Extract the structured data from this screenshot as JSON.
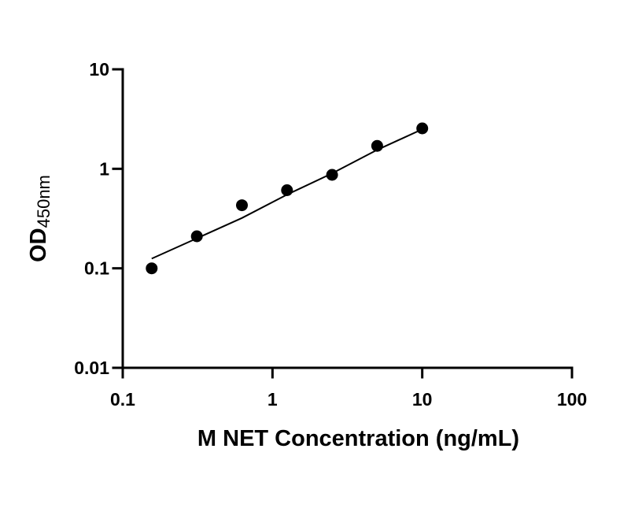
{
  "chart_data": {
    "type": "scatter",
    "xlabel": "M NET Concentration (ng/mL)",
    "ylabel": {
      "main": "OD",
      "subscript": "450nm"
    },
    "x_scale": "log",
    "y_scale": "log",
    "xlim": [
      0.1,
      100
    ],
    "ylim": [
      0.01,
      10
    ],
    "x_ticks": [
      {
        "value": 0.1,
        "label": "0.1"
      },
      {
        "value": 1,
        "label": "1"
      },
      {
        "value": 10,
        "label": "10"
      },
      {
        "value": 100,
        "label": "100"
      }
    ],
    "y_ticks": [
      {
        "value": 0.01,
        "label": "0.01"
      },
      {
        "value": 0.1,
        "label": "0.1"
      },
      {
        "value": 1,
        "label": "1"
      },
      {
        "value": 10,
        "label": "10"
      }
    ],
    "grid": false,
    "legend": "none",
    "series": [
      {
        "points": [
          {
            "x": 0.156,
            "y": 0.1
          },
          {
            "x": 0.3125,
            "y": 0.21
          },
          {
            "x": 0.625,
            "y": 0.43
          },
          {
            "x": 1.25,
            "y": 0.61
          },
          {
            "x": 2.5,
            "y": 0.87
          },
          {
            "x": 5,
            "y": 1.7
          },
          {
            "x": 10,
            "y": 2.55
          }
        ],
        "color": "#000000"
      }
    ],
    "fit_line": {
      "color": "#000000",
      "points": [
        {
          "x": 0.156,
          "y": 0.125
        },
        {
          "x": 0.3125,
          "y": 0.2
        },
        {
          "x": 0.625,
          "y": 0.32
        },
        {
          "x": 1.25,
          "y": 0.55
        },
        {
          "x": 2.5,
          "y": 0.9
        },
        {
          "x": 5,
          "y": 1.55
        },
        {
          "x": 10,
          "y": 2.5
        }
      ]
    }
  }
}
